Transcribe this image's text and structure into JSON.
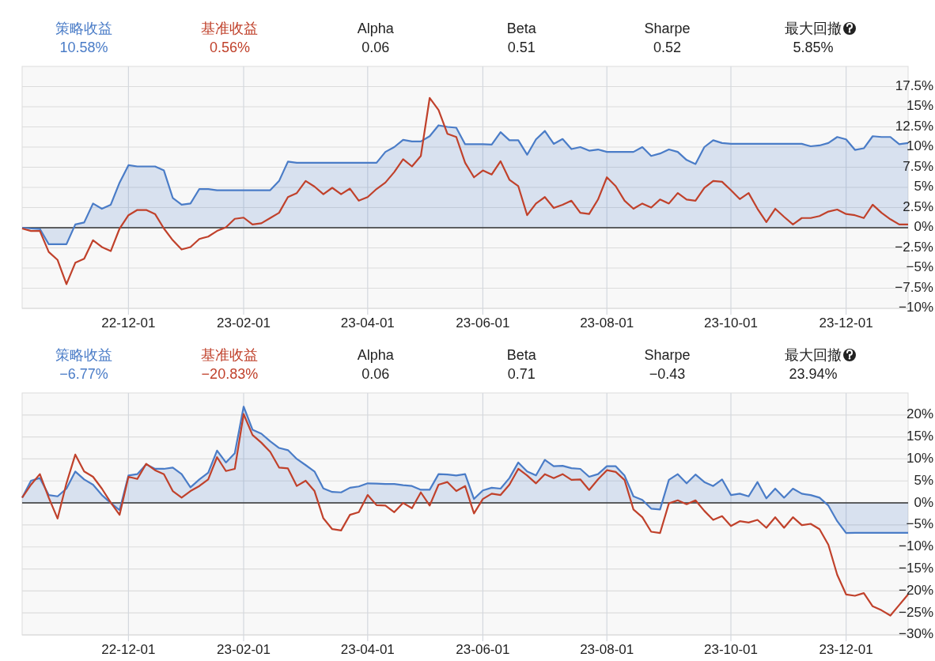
{
  "chart_data": [
    {
      "type": "line",
      "legend": "top",
      "grid": true,
      "annotations": [
        "10.58%",
        "0.56%",
        "Alpha",
        "0.06",
        "Beta",
        "0.51",
        "Sharpe",
        "0.52",
        "最大回撤",
        "5.85%"
      ],
      "categories": [
        null,
        null,
        null,
        null,
        null,
        null,
        null,
        null,
        null,
        null,
        null,
        null,
        "22-12-01",
        null,
        null,
        null,
        null,
        null,
        null,
        null,
        null,
        null,
        null,
        null,
        null,
        "23-02-01",
        null,
        null,
        null,
        null,
        null,
        null,
        null,
        null,
        null,
        null,
        null,
        null,
        null,
        "23-04-01",
        null,
        null,
        null,
        null,
        null,
        null,
        null,
        null,
        null,
        null,
        null,
        null,
        "23-06-01",
        null,
        null,
        null,
        null,
        null,
        null,
        null,
        null,
        null,
        null,
        null,
        null,
        null,
        "23-08-01",
        null,
        null,
        null,
        null,
        null,
        null,
        null,
        null,
        null,
        null,
        null,
        null,
        null,
        "23-10-01",
        null,
        null,
        null,
        null,
        null,
        null,
        null,
        null,
        null,
        null,
        null,
        null,
        "23-12-01",
        null,
        null,
        null,
        null,
        null,
        null,
        null
      ],
      "ylim": [
        -10,
        20
      ],
      "yticks": [
        {
          "value": -10,
          "label": "−10%"
        },
        {
          "value": -7.5,
          "label": "−7.5%"
        },
        {
          "value": -5,
          "label": "−5%"
        },
        {
          "value": -2.5,
          "label": "−2.5%"
        },
        {
          "value": 0,
          "label": "0%"
        },
        {
          "value": 2.5,
          "label": "2.5%"
        },
        {
          "value": 5,
          "label": "5%"
        },
        {
          "value": 7.5,
          "label": "7.5%"
        },
        {
          "value": 10,
          "label": "10%"
        },
        {
          "value": 12.5,
          "label": "12.5%"
        },
        {
          "value": 15,
          "label": "15%"
        },
        {
          "value": 17.5,
          "label": "17.5%"
        }
      ],
      "ref_lines": [
        {
          "axis": "y",
          "value": 0,
          "color": "#333333"
        }
      ],
      "series": [
        {
          "name": "策略收益",
          "type": "area",
          "color": "#4a7cc7",
          "values": [
            0,
            -0.1,
            -0.15,
            -2.05,
            -2.05,
            -2.05,
            0.4,
            0.65,
            3.0,
            2.35,
            2.85,
            5.6,
            7.75,
            7.6,
            7.6,
            7.6,
            7.1,
            3.7,
            2.85,
            3.0,
            4.8,
            4.8,
            4.65,
            4.65,
            4.65,
            4.65,
            4.65,
            4.65,
            4.65,
            5.8,
            8.2,
            8.05,
            8.05,
            8.05,
            8.05,
            8.05,
            8.05,
            8.05,
            8.05,
            8.05,
            8.05,
            9.4,
            10.0,
            10.9,
            10.7,
            10.7,
            11.35,
            12.7,
            12.5,
            12.4,
            10.35,
            10.35,
            10.35,
            10.3,
            11.85,
            10.85,
            10.85,
            9.05,
            10.95,
            12.0,
            10.4,
            11.0,
            9.75,
            10.0,
            9.55,
            9.7,
            9.4,
            9.4,
            9.4,
            9.4,
            10.0,
            8.9,
            9.2,
            9.7,
            9.4,
            8.4,
            7.9,
            10.0,
            10.85,
            10.5,
            10.4,
            10.4,
            10.4,
            10.4,
            10.4,
            10.4,
            10.4,
            10.4,
            10.4,
            10.1,
            10.2,
            10.5,
            11.25,
            10.95,
            9.65,
            9.85,
            11.35,
            11.25,
            11.25,
            10.35,
            10.5
          ]
        },
        {
          "name": "基准收益",
          "type": "line",
          "color": "#c0412b",
          "values": [
            -0.1,
            -0.4,
            -0.4,
            -3.0,
            -4.0,
            -7.0,
            -4.35,
            -3.85,
            -1.55,
            -2.4,
            -2.9,
            -0.1,
            1.55,
            2.2,
            2.2,
            1.7,
            -0.1,
            -1.55,
            -2.7,
            -2.4,
            -1.4,
            -1.1,
            -0.4,
            0.05,
            1.1,
            1.25,
            0.4,
            0.55,
            1.2,
            1.85,
            3.8,
            4.3,
            5.8,
            5.1,
            4.15,
            4.95,
            4.15,
            4.85,
            3.35,
            3.8,
            4.8,
            5.6,
            6.9,
            8.5,
            7.6,
            8.9,
            16.1,
            14.6,
            11.65,
            11.25,
            8.05,
            6.25,
            7.1,
            6.6,
            8.25,
            5.95,
            5.15,
            1.55,
            3.0,
            3.8,
            2.45,
            2.85,
            3.35,
            1.85,
            1.7,
            3.5,
            6.25,
            5.15,
            3.35,
            2.35,
            3.0,
            2.5,
            3.5,
            3.0,
            4.3,
            3.5,
            3.35,
            4.95,
            5.8,
            5.7,
            4.65,
            3.55,
            4.3,
            2.35,
            0.7,
            2.35,
            1.35,
            0.4,
            1.2,
            1.2,
            1.45,
            2.0,
            2.25,
            1.7,
            1.55,
            1.2,
            2.85,
            1.85,
            1.05,
            0.4,
            0.4
          ]
        }
      ]
    },
    {
      "type": "line",
      "legend": "top",
      "grid": true,
      "annotations": [
        "−6.77%",
        "−20.83%",
        "Alpha",
        "0.06",
        "Beta",
        "0.71",
        "Sharpe",
        "−0.43",
        "最大回撤",
        "23.94%"
      ],
      "categories": [
        null,
        null,
        null,
        null,
        null,
        null,
        null,
        null,
        null,
        null,
        null,
        null,
        "22-12-01",
        null,
        null,
        null,
        null,
        null,
        null,
        null,
        null,
        null,
        null,
        null,
        null,
        "23-02-01",
        null,
        null,
        null,
        null,
        null,
        null,
        null,
        null,
        null,
        null,
        null,
        null,
        null,
        "23-04-01",
        null,
        null,
        null,
        null,
        null,
        null,
        null,
        null,
        null,
        null,
        null,
        null,
        "23-06-01",
        null,
        null,
        null,
        null,
        null,
        null,
        null,
        null,
        null,
        null,
        null,
        null,
        null,
        "23-08-01",
        null,
        null,
        null,
        null,
        null,
        null,
        null,
        null,
        null,
        null,
        null,
        null,
        null,
        "23-10-01",
        null,
        null,
        null,
        null,
        null,
        null,
        null,
        null,
        null,
        null,
        null,
        null,
        "23-12-01",
        null,
        null,
        null,
        null,
        null,
        null,
        null
      ],
      "ylim": [
        -30,
        25
      ],
      "yticks": [
        {
          "value": -30,
          "label": "−30%"
        },
        {
          "value": -25,
          "label": "−25%"
        },
        {
          "value": -20,
          "label": "−20%"
        },
        {
          "value": -15,
          "label": "−15%"
        },
        {
          "value": -10,
          "label": "−10%"
        },
        {
          "value": -5,
          "label": "−5%"
        },
        {
          "value": 0,
          "label": "0%"
        },
        {
          "value": 5,
          "label": "5%"
        },
        {
          "value": 10,
          "label": "10%"
        },
        {
          "value": 15,
          "label": "15%"
        },
        {
          "value": 20,
          "label": "20%"
        }
      ],
      "ref_lines": [
        {
          "axis": "y",
          "value": 0,
          "color": "#333333"
        }
      ],
      "series": [
        {
          "name": "策略收益",
          "type": "area",
          "color": "#4a7cc7",
          "values": [
            1.2,
            5.05,
            5.65,
            1.8,
            1.5,
            3.25,
            7.15,
            5.35,
            4.15,
            1.8,
            0,
            -1.65,
            6.25,
            6.55,
            8.8,
            7.75,
            7.75,
            8.05,
            6.55,
            3.55,
            5.35,
            6.85,
            11.9,
            9.2,
            11.3,
            21.9,
            16.65,
            15.75,
            14.0,
            12.5,
            12.0,
            10.0,
            8.6,
            7.15,
            3.3,
            2.5,
            2.4,
            3.45,
            3.75,
            4.45,
            4.4,
            4.3,
            4.3,
            4.05,
            3.85,
            3.0,
            3.0,
            6.55,
            6.45,
            6.25,
            6.55,
            0.9,
            2.85,
            3.45,
            3.25,
            5.65,
            9.2,
            7.15,
            6.25,
            9.8,
            8.35,
            8.45,
            7.9,
            7.75,
            5.95,
            6.55,
            8.35,
            8.35,
            6.2,
            1.5,
            0.7,
            -1.3,
            -1.5,
            5.25,
            6.55,
            4.45,
            6.45,
            4.75,
            3.85,
            5.35,
            1.8,
            2.1,
            1.5,
            4.75,
            1.05,
            3.25,
            1.2,
            3.25,
            2.1,
            1.8,
            1.2,
            -0.6,
            -4.15,
            -6.85,
            -6.8,
            -6.8,
            -6.8,
            -6.8,
            -6.8,
            -6.8,
            -6.8
          ]
        },
        {
          "name": "基准收益",
          "type": "line",
          "color": "#c0412b",
          "values": [
            1.2,
            4.15,
            6.55,
            1.2,
            -3.55,
            4.45,
            11.0,
            7.15,
            5.95,
            3.25,
            0.1,
            -2.7,
            5.95,
            5.45,
            8.9,
            7.45,
            6.55,
            2.7,
            1.2,
            2.7,
            3.85,
            5.35,
            10.4,
            7.25,
            7.75,
            20.2,
            15.45,
            13.7,
            11.6,
            8.05,
            7.85,
            3.85,
            5.05,
            2.7,
            -3.5,
            -5.95,
            -6.25,
            -2.7,
            -2.1,
            1.8,
            -0.5,
            -0.6,
            -2.1,
            0,
            -1.2,
            2.4,
            -0.6,
            4.15,
            4.75,
            2.7,
            3.85,
            -2.4,
            0.9,
            2.1,
            1.8,
            4.15,
            7.75,
            6.25,
            4.45,
            6.55,
            5.65,
            6.55,
            5.25,
            5.35,
            2.95,
            5.35,
            7.45,
            7.05,
            5.2,
            -1.5,
            -3.25,
            -6.55,
            -6.85,
            -0.1,
            0.6,
            -0.3,
            0.6,
            -1.8,
            -3.85,
            -3.0,
            -5.25,
            -4.15,
            -4.45,
            -3.85,
            -5.65,
            -3.25,
            -5.65,
            -3.25,
            -5.05,
            -4.75,
            -5.95,
            -9.5,
            -16.35,
            -20.8,
            -21.1,
            -20.5,
            -23.5,
            -24.4,
            -25.6,
            -23.2,
            -20.8
          ]
        }
      ]
    }
  ]
}
